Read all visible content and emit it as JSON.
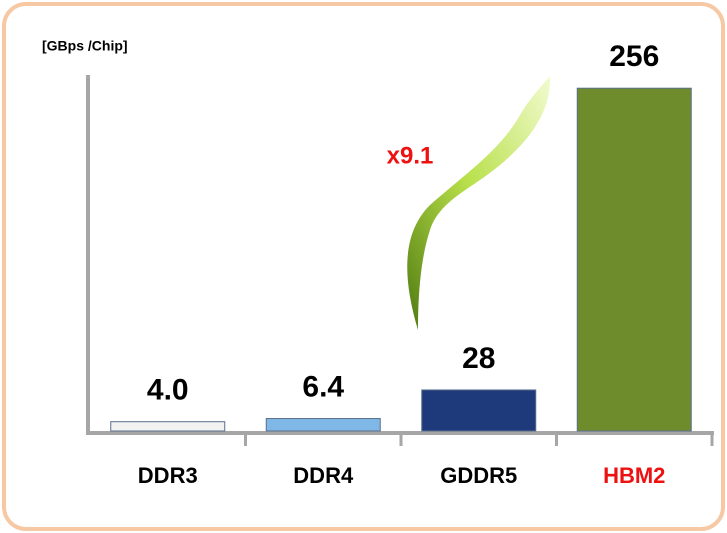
{
  "chart_data": {
    "type": "bar",
    "y_label": "[GBps /Chip]",
    "annotation": "x9.1",
    "annotation_color": "#ee1111",
    "categories": [
      "DDR3",
      "DDR4",
      "GDDR5",
      "HBM2"
    ],
    "category_colors": [
      "#000000",
      "#000000",
      "#000000",
      "#ee1111"
    ],
    "values": [
      4.0,
      6.4,
      28,
      256
    ],
    "value_labels": [
      "4.0",
      "6.4",
      "28",
      "256"
    ],
    "colors": [
      "#f2f2f2",
      "#7fb8e6",
      "#1f3a7a",
      "#6e8c2c"
    ],
    "ylim": [
      0,
      269
    ],
    "grid": false
  }
}
